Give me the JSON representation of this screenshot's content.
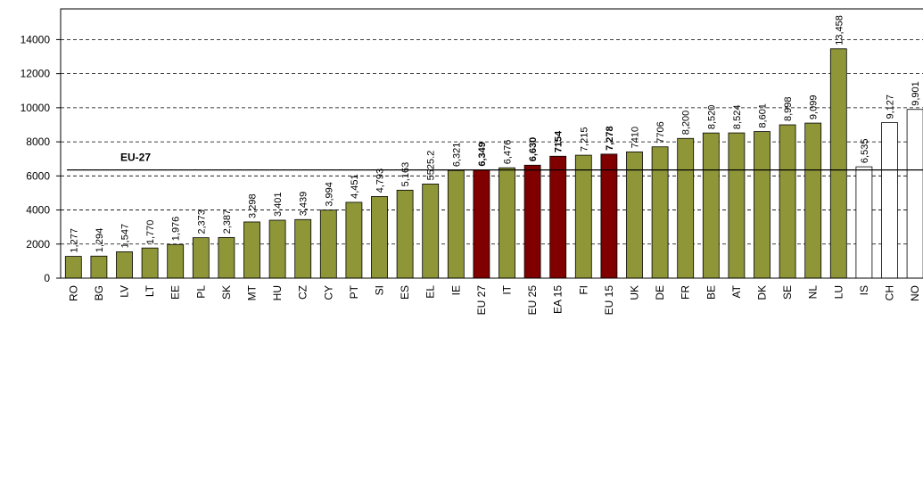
{
  "chart_data": {
    "type": "bar",
    "categories": [
      "RO",
      "BG",
      "LV",
      "LT",
      "EE",
      "PL",
      "SK",
      "MT",
      "HU",
      "CZ",
      "CY",
      "PT",
      "SI",
      "ES",
      "EL",
      "IE",
      "EU 27",
      "IT",
      "EU 25",
      "EA 15",
      "FI",
      "EU 15",
      "UK",
      "DE",
      "FR",
      "BE",
      "AT",
      "DK",
      "SE",
      "NL",
      "LU",
      "IS",
      "CH",
      "NO"
    ],
    "values": [
      1277,
      1294,
      1547,
      1770,
      1976,
      2373,
      2387,
      3298,
      3401,
      3439,
      3994,
      4451,
      4793,
      5163,
      5525.2,
      6321,
      6349,
      6476,
      6630,
      7154,
      7215,
      7278,
      7410,
      7706,
      8200,
      8520,
      8524,
      8601,
      8998,
      9099,
      13458,
      6535,
      9127,
      9901
    ],
    "value_labels": [
      "1,277",
      "1,294",
      "1,547",
      "1,770",
      "1,976",
      "2,373",
      "2,387",
      "3,298",
      "3,401",
      "3,439",
      "3,994",
      "4,451",
      "4,793",
      "5,163",
      "5525.2",
      "6,321",
      "6,349",
      "6,476",
      "6,630",
      "7154",
      "7,215",
      "7,278",
      "7410",
      "7706",
      "8,200",
      "8,520",
      "8,524",
      "8,601",
      "8,998",
      "9,099",
      "13,458",
      "6,535",
      "9,127",
      "9,901"
    ],
    "colors": [
      "#8f9638",
      "#8f9638",
      "#8f9638",
      "#8f9638",
      "#8f9638",
      "#8f9638",
      "#8f9638",
      "#8f9638",
      "#8f9638",
      "#8f9638",
      "#8f9638",
      "#8f9638",
      "#8f9638",
      "#8f9638",
      "#8f9638",
      "#8f9638",
      "#800000",
      "#8f9638",
      "#800000",
      "#800000",
      "#8f9638",
      "#800000",
      "#8f9638",
      "#8f9638",
      "#8f9638",
      "#8f9638",
      "#8f9638",
      "#8f9638",
      "#8f9638",
      "#8f9638",
      "#8f9638",
      "#ffffff",
      "#ffffff",
      "#ffffff"
    ],
    "ylim": [
      0,
      15800
    ],
    "yticks": [
      0,
      2000,
      4000,
      6000,
      8000,
      10000,
      12000,
      14000
    ],
    "grid": true,
    "reference_line": {
      "label": "EU-27",
      "value": 6349
    }
  }
}
